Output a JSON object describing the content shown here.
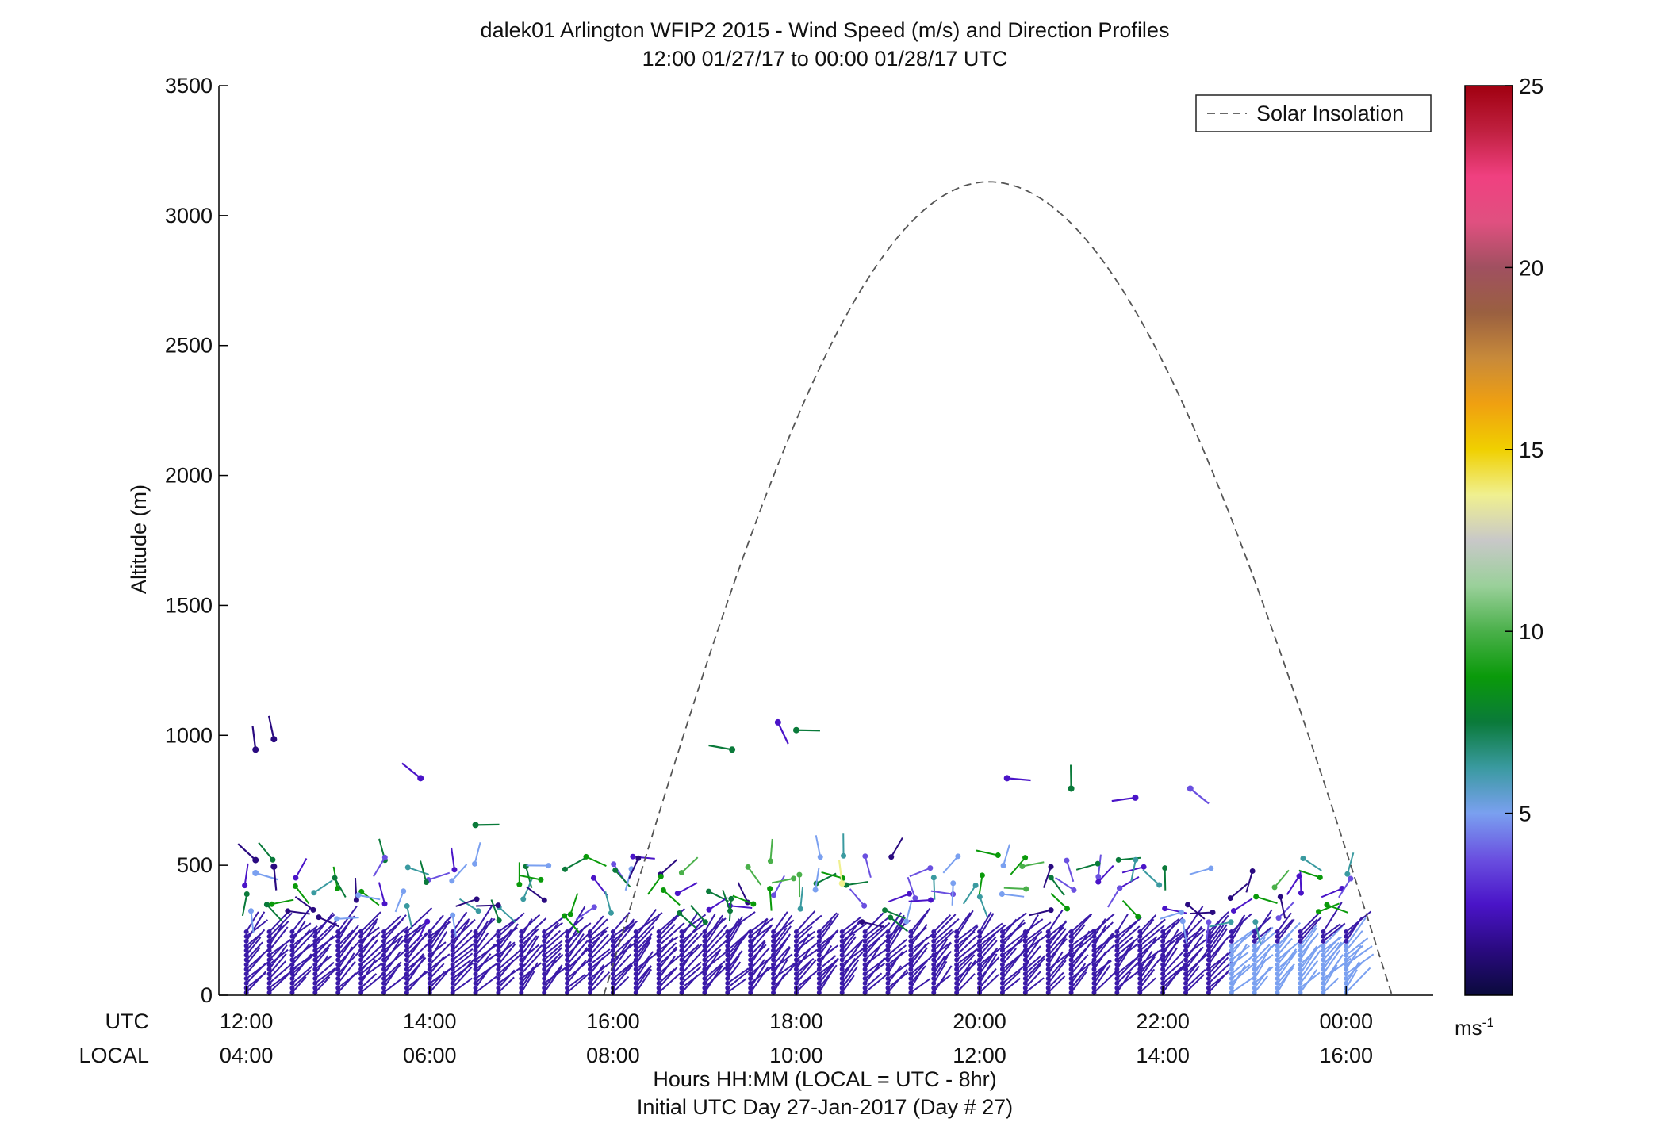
{
  "chart_data": {
    "type": "scatter",
    "title": "dalek01 Arlington WFIP2 2015 - Wind Speed (m/s) and Direction Profiles",
    "subtitle": "12:00 01/27/17 to 00:00 01/28/17  UTC",
    "ylabel": "Altitude (m)",
    "xlabel": "Hours HH:MM  (LOCAL = UTC - 8hr)",
    "xlabel2": "Initial UTC Day 27-Jan-2017 (Day # 27)",
    "utc_label": "UTC",
    "local_label": "LOCAL",
    "ylim": [
      0,
      3500
    ],
    "xlim_hours": [
      11.7,
      24.95
    ],
    "y_ticks": [
      0,
      500,
      1000,
      1500,
      2000,
      2500,
      3000,
      3500
    ],
    "y_tick_labels": [
      "0",
      "500",
      "1000",
      "1500",
      "2000",
      "2500",
      "3000",
      "3500"
    ],
    "x_ticks_hours": [
      12,
      14,
      16,
      18,
      20,
      22,
      24
    ],
    "utc_tick_labels": [
      "12:00",
      "14:00",
      "16:00",
      "18:00",
      "20:00",
      "22:00",
      "00:00"
    ],
    "local_tick_labels": [
      "04:00",
      "06:00",
      "08:00",
      "10:00",
      "12:00",
      "14:00",
      "16:00"
    ],
    "legend": {
      "label": "Solar Insolation",
      "position": "top-right"
    },
    "colorbar": {
      "min": 0,
      "max": 25,
      "ticks": [
        5,
        10,
        15,
        20,
        25
      ],
      "tick_labels": [
        "5",
        "10",
        "15",
        "20",
        "25"
      ],
      "unit_base": "ms",
      "unit_exp": "-1",
      "colors": [
        "#0a0a3c",
        "#2a0a80",
        "#4a14c8",
        "#6a50e0",
        "#7aa0f0",
        "#3a9aa0",
        "#0a7a3a",
        "#0a9a0a",
        "#4ab04a",
        "#9ad09a",
        "#c8c8c8",
        "#f0f090",
        "#f0d000",
        "#f0a010",
        "#c88a3a",
        "#9a6040",
        "#a05060",
        "#e05080",
        "#f04080",
        "#c02040",
        "#a00010"
      ]
    },
    "solar_insolation": {
      "style": "dashed",
      "color": "#555555",
      "start_hour": 15.9,
      "peak_hour": 20.1,
      "end_hour": 24.5,
      "peak_altitude": 3130
    },
    "wind_barbs": {
      "color_low": "#3a1aa8",
      "color_high": "#7aa0f0",
      "sample_points": [
        {
          "hour": 12.1,
          "alt": 945,
          "speed": 1
        },
        {
          "hour": 12.3,
          "alt": 985,
          "speed": 1
        },
        {
          "hour": 12.1,
          "alt": 520,
          "speed": 1
        },
        {
          "hour": 12.1,
          "alt": 470,
          "speed": 5
        },
        {
          "hour": 12.3,
          "alt": 495,
          "speed": 1
        },
        {
          "hour": 13.9,
          "alt": 835,
          "speed": 2
        },
        {
          "hour": 14.5,
          "alt": 655,
          "speed": 8
        },
        {
          "hour": 17.3,
          "alt": 945,
          "speed": 7
        },
        {
          "hour": 17.8,
          "alt": 1050,
          "speed": 3
        },
        {
          "hour": 18.0,
          "alt": 1020,
          "speed": 7
        },
        {
          "hour": 20.3,
          "alt": 835,
          "speed": 2
        },
        {
          "hour": 21.0,
          "alt": 795,
          "speed": 8
        },
        {
          "hour": 21.7,
          "alt": 760,
          "speed": 2
        },
        {
          "hour": 22.3,
          "alt": 795,
          "speed": 4
        },
        {
          "hour": 18.5,
          "alt": 430,
          "speed": 14
        }
      ]
    }
  }
}
